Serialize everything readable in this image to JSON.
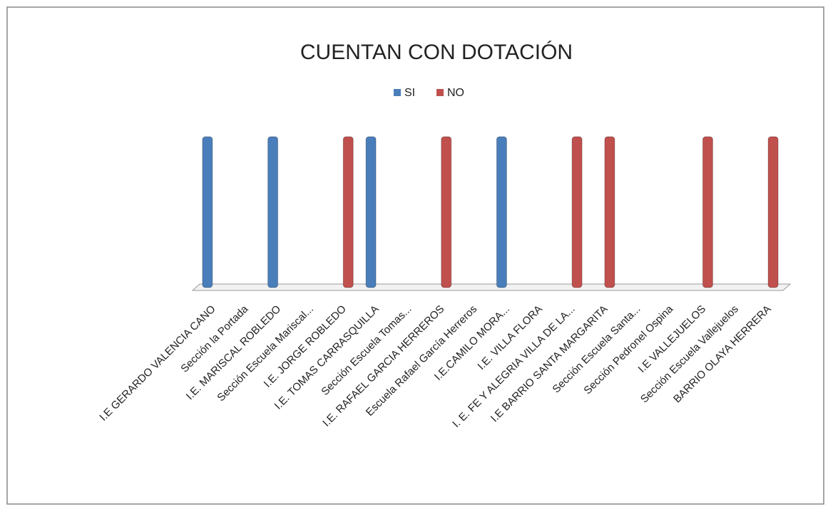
{
  "chart_data": {
    "type": "bar",
    "title": "CUENTAN CON DOTACIÓN",
    "categories": [
      "I.E GERARDO VALENCIA CANO",
      "Sección la Portada",
      "I.E. MARISCAL ROBLEDO",
      "Sección Escuela Mariscal...",
      "I.E. JORGE ROBLEDO",
      "I.E. TOMAS CARRASQUILLA",
      "Sección Escuela Tomas...",
      "I.E. RAFAEL GARCIA HERREROS",
      "Escuela Rafael García Herreros",
      "I.E.CAMILO MORA...",
      "I.E. VILLA FLORA",
      "I. E. FE Y ALEGRIA VILLA DE LA...",
      "I.E BARRIO SANTA MARGARITA",
      "Sección Escuela Santa...",
      "Sección Pedronel Ospina",
      "I.E VALLEJUELOS",
      "Sección Escuela Vallejuelos",
      "BARRIO OLAYA HERRERA"
    ],
    "series": [
      {
        "name": "SI",
        "color": "#4a7ebb",
        "values": [
          1,
          null,
          1,
          null,
          null,
          1,
          null,
          null,
          null,
          1,
          null,
          null,
          null,
          null,
          null,
          null,
          null,
          null
        ]
      },
      {
        "name": "NO",
        "color": "#c0504d",
        "values": [
          null,
          null,
          null,
          null,
          1,
          null,
          null,
          1,
          null,
          null,
          null,
          1,
          1,
          null,
          null,
          1,
          null,
          1
        ]
      }
    ],
    "ylim": [
      0,
      1
    ],
    "legend": "top"
  }
}
